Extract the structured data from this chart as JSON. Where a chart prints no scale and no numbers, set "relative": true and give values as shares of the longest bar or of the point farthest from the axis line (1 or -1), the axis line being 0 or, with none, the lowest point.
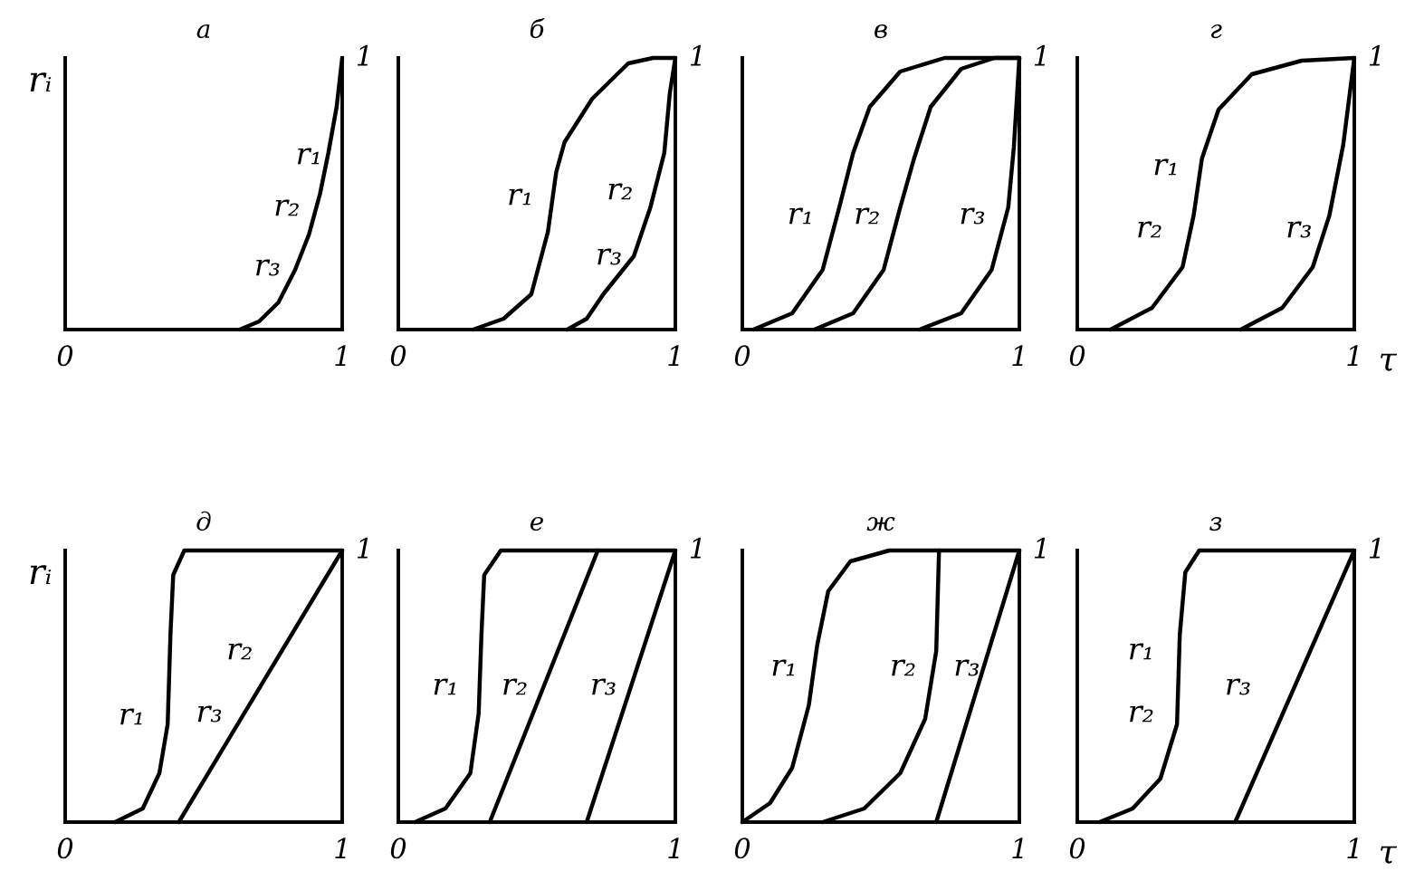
{
  "chart_data": [
    {
      "type": "line",
      "relative": true,
      "title": "а",
      "ylabel": "rᵢ",
      "xlim": [
        0,
        1
      ],
      "xticks": [
        0,
        1
      ],
      "series": [
        {
          "color": "#000000",
          "x": [
            0.63,
            0.7,
            0.77,
            0.83,
            0.88,
            0.92,
            0.95,
            0.98,
            1
          ],
          "values": [
            0,
            0.03,
            0.1,
            0.22,
            0.35,
            0.5,
            0.65,
            0.82,
            1
          ]
        }
      ],
      "annotations": [
        "r₁",
        "r₂",
        "r₃",
        "1"
      ]
    },
    {
      "type": "line",
      "relative": true,
      "title": "б",
      "xlim": [
        0,
        1
      ],
      "xticks": [
        0,
        1
      ],
      "series": [
        {
          "color": "#000000",
          "x": [
            0.27,
            0.38,
            0.48,
            0.54,
            0.57,
            0.6,
            0.7,
            0.83,
            0.92,
            1
          ],
          "values": [
            0,
            0.04,
            0.13,
            0.36,
            0.58,
            0.69,
            0.85,
            0.98,
            1,
            1
          ]
        },
        {
          "color": "#000000",
          "x": [
            0.61,
            0.68,
            0.74,
            0.85,
            0.91,
            0.96,
            0.98,
            1
          ],
          "values": [
            0,
            0.04,
            0.13,
            0.27,
            0.45,
            0.65,
            0.87,
            1
          ]
        }
      ],
      "annotations": [
        "r₁",
        "r₂",
        "r₃",
        "1"
      ]
    },
    {
      "type": "line",
      "relative": true,
      "title": "в",
      "xlim": [
        0,
        1
      ],
      "xticks": [
        0,
        1
      ],
      "series": [
        {
          "color": "#000000",
          "x": [
            0.04,
            0.18,
            0.29,
            0.35,
            0.4,
            0.46,
            0.57,
            0.73,
            1
          ],
          "values": [
            0,
            0.06,
            0.22,
            0.45,
            0.65,
            0.82,
            0.95,
            1,
            1
          ]
        },
        {
          "color": "#000000",
          "x": [
            0.26,
            0.4,
            0.51,
            0.57,
            0.62,
            0.68,
            0.79,
            0.91,
            1
          ],
          "values": [
            0,
            0.06,
            0.22,
            0.45,
            0.63,
            0.82,
            0.96,
            1,
            1
          ]
        },
        {
          "color": "#000000",
          "x": [
            0.64,
            0.79,
            0.9,
            0.96,
            0.98,
            1
          ],
          "values": [
            0,
            0.06,
            0.22,
            0.45,
            0.67,
            1
          ]
        }
      ],
      "annotations": [
        "r₁",
        "r₂",
        "r₃",
        "1"
      ]
    },
    {
      "type": "line",
      "relative": true,
      "title": "г",
      "xlabel": "τ",
      "xlim": [
        0,
        1
      ],
      "xticks": [
        0,
        1
      ],
      "series": [
        {
          "color": "#000000",
          "x": [
            0.12,
            0.27,
            0.38,
            0.42,
            0.45,
            0.51,
            0.63,
            0.81,
            1
          ],
          "values": [
            0,
            0.08,
            0.23,
            0.42,
            0.63,
            0.81,
            0.94,
            0.99,
            1
          ]
        },
        {
          "color": "#000000",
          "x": [
            0.59,
            0.74,
            0.85,
            0.91,
            0.96,
            1
          ],
          "values": [
            0,
            0.08,
            0.23,
            0.42,
            0.68,
            1
          ]
        }
      ],
      "annotations": [
        "r₁",
        "r₂",
        "r₃",
        "1"
      ]
    },
    {
      "type": "line",
      "relative": true,
      "title": "д",
      "ylabel": "rᵢ",
      "xlim": [
        0,
        1
      ],
      "xticks": [
        0,
        1
      ],
      "series": [
        {
          "color": "#000000",
          "x": [
            0.18,
            0.28,
            0.34,
            0.37,
            0.38,
            0.39,
            0.43,
            1
          ],
          "values": [
            0,
            0.05,
            0.18,
            0.36,
            0.69,
            0.91,
            1,
            1
          ]
        },
        {
          "color": "#000000",
          "x": [
            0.41,
            1
          ],
          "values": [
            0,
            1
          ]
        }
      ],
      "annotations": [
        "r₁",
        "r₃",
        "r₂",
        "1"
      ]
    },
    {
      "type": "line",
      "relative": true,
      "title": "е",
      "xlim": [
        0,
        1
      ],
      "xticks": [
        0,
        1
      ],
      "series": [
        {
          "color": "#000000",
          "x": [
            0.06,
            0.17,
            0.26,
            0.29,
            0.3,
            0.31,
            0.37,
            1
          ],
          "values": [
            0,
            0.05,
            0.18,
            0.4,
            0.69,
            0.91,
            1,
            1
          ]
        },
        {
          "color": "#000000",
          "x": [
            0.33,
            0.72
          ],
          "values": [
            0,
            1
          ]
        },
        {
          "color": "#000000",
          "x": [
            0.68,
            1
          ],
          "values": [
            0,
            1
          ]
        }
      ],
      "annotations": [
        "r₁",
        "r₂",
        "r₃",
        "1"
      ]
    },
    {
      "type": "line",
      "relative": true,
      "title": "ж",
      "xlim": [
        0,
        1
      ],
      "xticks": [
        0,
        1
      ],
      "series": [
        {
          "color": "#000000",
          "x": [
            0,
            0.1,
            0.18,
            0.24,
            0.27,
            0.31,
            0.39,
            0.53,
            1
          ],
          "values": [
            0,
            0.07,
            0.2,
            0.43,
            0.65,
            0.85,
            0.96,
            1,
            1
          ]
        },
        {
          "color": "#000000",
          "x": [
            0.29,
            0.44,
            0.57,
            0.66,
            0.7,
            0.71
          ],
          "values": [
            0,
            0.05,
            0.18,
            0.38,
            0.63,
            1
          ]
        },
        {
          "color": "#000000",
          "x": [
            0.7,
            1
          ],
          "values": [
            0,
            1
          ]
        }
      ],
      "annotations": [
        "r₁",
        "r₂",
        "r₃",
        "1"
      ]
    },
    {
      "type": "line",
      "relative": true,
      "title": "з",
      "xlabel": "τ",
      "xlim": [
        0,
        1
      ],
      "xticks": [
        0,
        1
      ],
      "series": [
        {
          "color": "#000000",
          "x": [
            0.08,
            0.2,
            0.3,
            0.36,
            0.37,
            0.39,
            0.44,
            1
          ],
          "values": [
            0,
            0.05,
            0.16,
            0.36,
            0.69,
            0.92,
            1,
            1
          ]
        },
        {
          "color": "#000000",
          "x": [
            0.57,
            1
          ],
          "values": [
            0,
            1
          ]
        }
      ],
      "annotations": [
        "r₁",
        "r₂",
        "r₃",
        "1"
      ]
    }
  ]
}
